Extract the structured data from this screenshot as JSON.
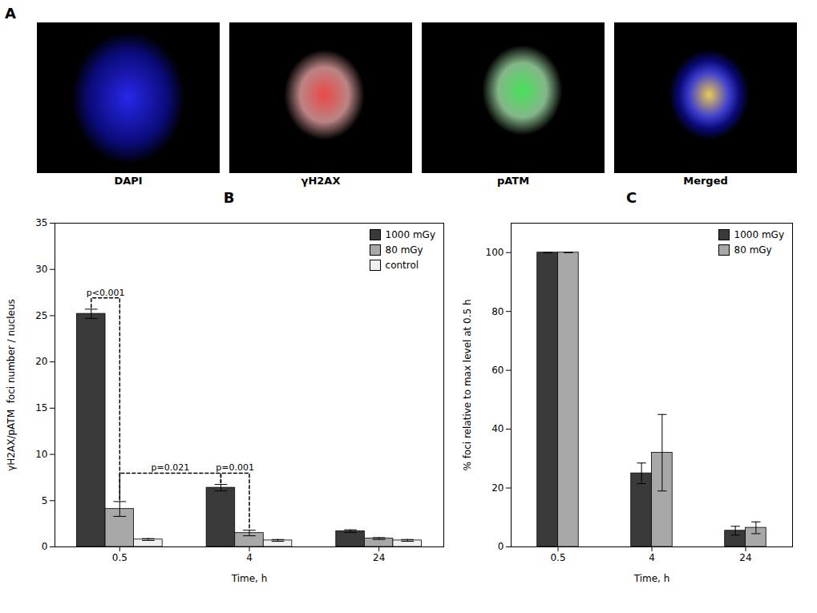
{
  "chart_data": [
    {
      "type": "image",
      "title": "A",
      "categories": [
        "DAPI",
        "γH2AX",
        "pATM",
        "Merged"
      ]
    },
    {
      "type": "bar",
      "title": "B",
      "categories": [
        "0.5",
        "4",
        "24"
      ],
      "series": [
        {
          "name": "1000 mGy",
          "color": "#3a3a3a",
          "values": [
            25.2,
            6.4,
            1.7
          ],
          "errors": [
            0.5,
            0.35,
            0.15
          ]
        },
        {
          "name": "80 mGy",
          "color": "#a8a8a8",
          "values": [
            4.1,
            1.5,
            0.9
          ],
          "errors": [
            0.8,
            0.3,
            0.1
          ]
        },
        {
          "name": "control",
          "color": "#f0f0f0",
          "values": [
            0.8,
            0.7,
            0.7
          ],
          "errors": [
            0.1,
            0.1,
            0.1
          ]
        }
      ],
      "xlabel": "Time, h",
      "ylabel": "γH2AX/pATM  foci number / nucleus",
      "ylim": [
        0,
        35
      ],
      "yticks": [
        0,
        5,
        10,
        15,
        20,
        25,
        30,
        35
      ],
      "legend": "upper right",
      "annotations": [
        {
          "text": "p<0.001",
          "between": [
            {
              "category": "0.5",
              "series": "1000 mGy"
            },
            {
              "category": "0.5",
              "series": "80 mGy"
            }
          ]
        },
        {
          "text": "p=0.021",
          "between": [
            {
              "category": "0.5",
              "series": "80 mGy"
            },
            {
              "category": "4",
              "series": "1000 mGy"
            }
          ]
        },
        {
          "text": "p=0.001",
          "between": [
            {
              "category": "4",
              "series": "1000 mGy"
            },
            {
              "category": "4",
              "series": "80 mGy"
            }
          ]
        }
      ]
    },
    {
      "type": "bar",
      "title": "C",
      "categories": [
        "0.5",
        "4",
        "24"
      ],
      "series": [
        {
          "name": "1000 mGy",
          "color": "#3a3a3a",
          "values": [
            100,
            25.0,
            5.5
          ],
          "errors": [
            0,
            3.5,
            1.5
          ]
        },
        {
          "name": "80 mGy",
          "color": "#a8a8a8",
          "values": [
            100,
            32.0,
            6.5
          ],
          "errors": [
            0,
            13.0,
            2.0
          ]
        }
      ],
      "xlabel": "Time, h",
      "ylabel": "% foci relative to max level at 0.5 h",
      "ylim": [
        0,
        110
      ],
      "yticks": [
        0,
        20,
        40,
        60,
        80,
        100
      ],
      "legend": "upper right"
    }
  ]
}
